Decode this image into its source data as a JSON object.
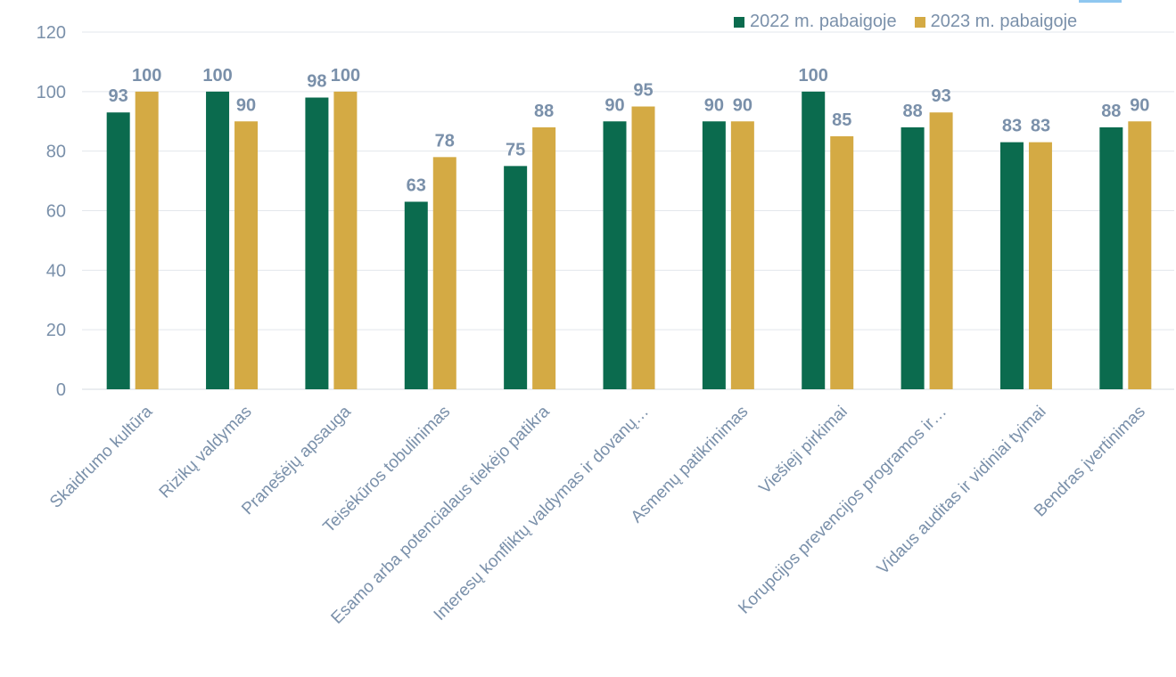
{
  "chart_data": {
    "type": "bar",
    "categories": [
      "Skaidrumo kultūra",
      "Rizikų valdymas",
      "Pranešėjų apsauga",
      "Teisėkūros tobulinimas",
      "Esamo arba potencialaus tiekėjo patikra",
      "Interesų konfliktų valdymas ir dovanų…",
      "Asmenų patikrinimas",
      "Viešieji pirkimai",
      "Korupcijos prevencijos programos ir…",
      "Vidaus auditas ir vidiniai tyimai",
      "Bendras įvertinimas"
    ],
    "series": [
      {
        "name": "2022 m. pabaigoje",
        "color": "#0B6B4E",
        "values": [
          93,
          100,
          98,
          63,
          75,
          90,
          90,
          100,
          88,
          83,
          88
        ]
      },
      {
        "name": "2023 m. pabaigoje",
        "color": "#D4AA44",
        "values": [
          100,
          90,
          100,
          78,
          88,
          95,
          90,
          85,
          93,
          83,
          90
        ]
      }
    ],
    "ylim": [
      0,
      120
    ],
    "yticks": [
      0,
      20,
      40,
      60,
      80,
      100,
      120
    ],
    "grid": true,
    "legend_position": "top-right",
    "title": "",
    "xlabel": "",
    "ylabel": "",
    "label_color": "#7A90AA",
    "grid_color": "#E3E7EC"
  }
}
